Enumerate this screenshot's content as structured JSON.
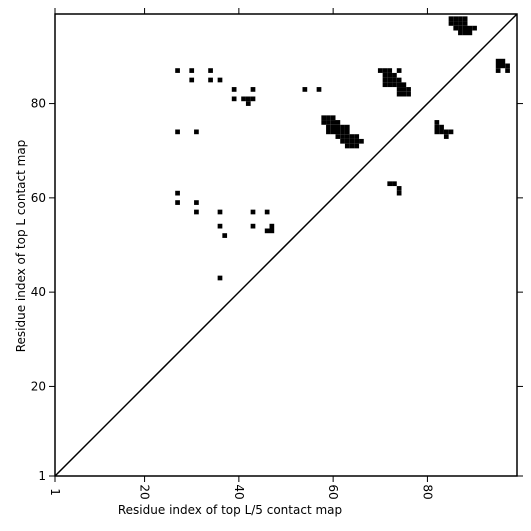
{
  "chart_data": {
    "type": "scatter",
    "xlabel": "Residue index of top L/5 contact map",
    "ylabel": "Residue index of top L contact map",
    "xlim": [
      1,
      99
    ],
    "ylim": [
      1,
      99
    ],
    "x_ticks": [
      1,
      20,
      40,
      60,
      80
    ],
    "y_ticks": [
      1,
      20,
      40,
      60,
      80
    ],
    "x_tick_labels": [
      "1",
      "20",
      "40",
      "60",
      "80"
    ],
    "y_tick_labels": [
      "1",
      "20",
      "40",
      "60",
      "80"
    ],
    "diagonal": true,
    "grid": false,
    "colors": {
      "cell": "#000000",
      "axis": "#000000",
      "background": "#ffffff"
    },
    "cells": [
      [
        27,
        87
      ],
      [
        30,
        87
      ],
      [
        34,
        87
      ],
      [
        30,
        85
      ],
      [
        34,
        85
      ],
      [
        36,
        85
      ],
      [
        39,
        83
      ],
      [
        43,
        83
      ],
      [
        39,
        81
      ],
      [
        41,
        81
      ],
      [
        42,
        81
      ],
      [
        43,
        81
      ],
      [
        42,
        80
      ],
      [
        54,
        83
      ],
      [
        57,
        83
      ],
      [
        27,
        74
      ],
      [
        31,
        74
      ],
      [
        27,
        61
      ],
      [
        27,
        59
      ],
      [
        31,
        59
      ],
      [
        31,
        57
      ],
      [
        36,
        57
      ],
      [
        43,
        57
      ],
      [
        46,
        57
      ],
      [
        36,
        54
      ],
      [
        43,
        54
      ],
      [
        47,
        54
      ],
      [
        46,
        53
      ],
      [
        47,
        53
      ],
      [
        37,
        52
      ],
      [
        36,
        43
      ],
      [
        70,
        87
      ],
      [
        71,
        87
      ],
      [
        72,
        87
      ],
      [
        74,
        87
      ],
      [
        71,
        86
      ],
      [
        72,
        86
      ],
      [
        73,
        86
      ],
      [
        71,
        85
      ],
      [
        72,
        85
      ],
      [
        73,
        85
      ],
      [
        74,
        85
      ],
      [
        71,
        84
      ],
      [
        72,
        84
      ],
      [
        73,
        84
      ],
      [
        74,
        84
      ],
      [
        75,
        84
      ],
      [
        74,
        83
      ],
      [
        75,
        83
      ],
      [
        76,
        83
      ],
      [
        74,
        82
      ],
      [
        75,
        82
      ],
      [
        76,
        82
      ],
      [
        58,
        77
      ],
      [
        59,
        77
      ],
      [
        60,
        77
      ],
      [
        58,
        76
      ],
      [
        59,
        76
      ],
      [
        60,
        76
      ],
      [
        61,
        76
      ],
      [
        59,
        75
      ],
      [
        60,
        75
      ],
      [
        61,
        75
      ],
      [
        62,
        75
      ],
      [
        63,
        75
      ],
      [
        59,
        74
      ],
      [
        60,
        74
      ],
      [
        61,
        74
      ],
      [
        62,
        74
      ],
      [
        63,
        74
      ],
      [
        61,
        73
      ],
      [
        62,
        73
      ],
      [
        63,
        73
      ],
      [
        64,
        73
      ],
      [
        65,
        73
      ],
      [
        62,
        72
      ],
      [
        63,
        72
      ],
      [
        64,
        72
      ],
      [
        65,
        72
      ],
      [
        66,
        72
      ],
      [
        63,
        71
      ],
      [
        64,
        71
      ],
      [
        65,
        71
      ],
      [
        82,
        76
      ],
      [
        82,
        75
      ],
      [
        83,
        75
      ],
      [
        82,
        74
      ],
      [
        83,
        74
      ],
      [
        84,
        74
      ],
      [
        85,
        74
      ],
      [
        84,
        73
      ],
      [
        72,
        63
      ],
      [
        73,
        63
      ],
      [
        74,
        62
      ],
      [
        74,
        61
      ],
      [
        85,
        98
      ],
      [
        86,
        98
      ],
      [
        87,
        98
      ],
      [
        88,
        98
      ],
      [
        85,
        97
      ],
      [
        86,
        97
      ],
      [
        87,
        97
      ],
      [
        88,
        97
      ],
      [
        86,
        96
      ],
      [
        87,
        96
      ],
      [
        88,
        96
      ],
      [
        89,
        96
      ],
      [
        90,
        96
      ],
      [
        87,
        95
      ],
      [
        88,
        95
      ],
      [
        89,
        95
      ],
      [
        95,
        89
      ],
      [
        96,
        89
      ],
      [
        95,
        88
      ],
      [
        96,
        88
      ],
      [
        97,
        88
      ],
      [
        95,
        87
      ],
      [
        97,
        87
      ]
    ]
  }
}
